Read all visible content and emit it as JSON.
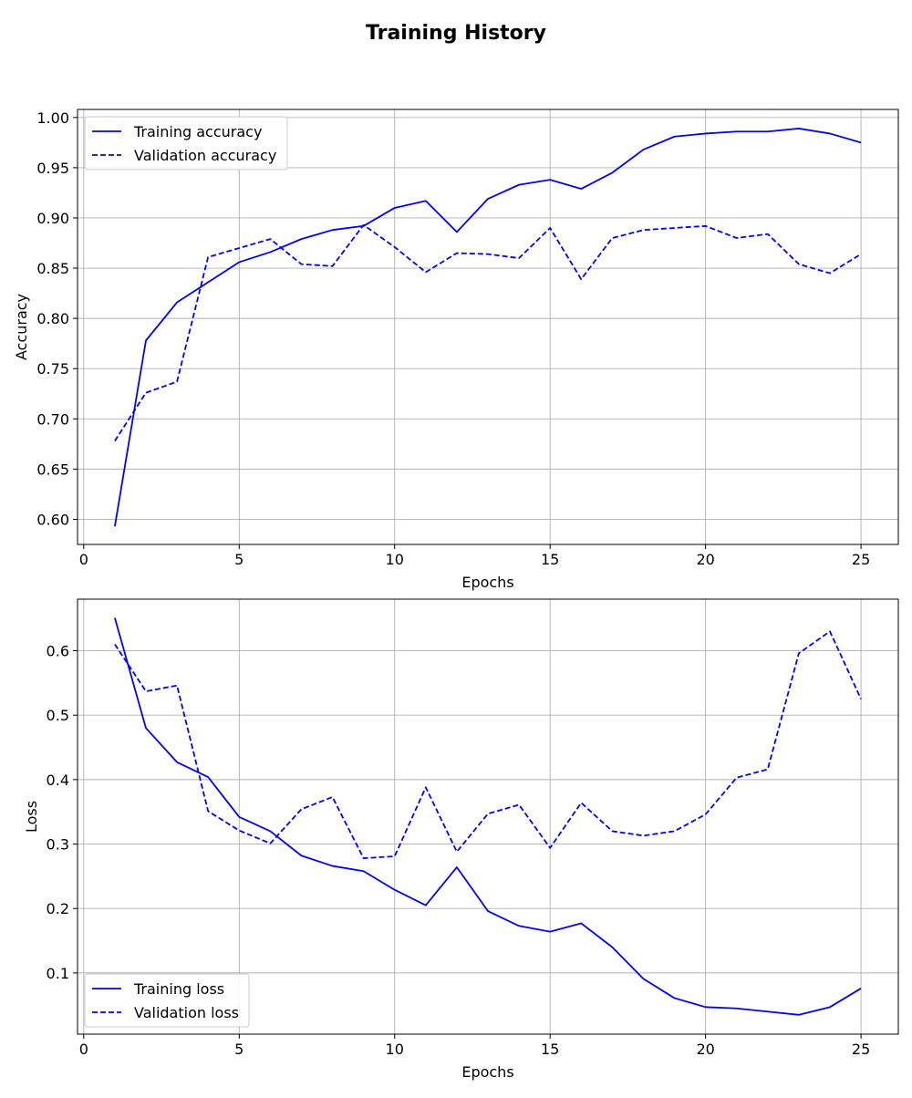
{
  "figure_title": "Training History",
  "colors": {
    "line": "#0000ff",
    "grid": "#b0b0b0",
    "axis": "#000000",
    "legend_border": "#cccccc"
  },
  "chart_data": [
    {
      "type": "line",
      "id": "accuracy",
      "xlabel": "Epochs",
      "ylabel": "Accuracy",
      "xlim": [
        -0.2,
        26.2
      ],
      "ylim": [
        0.575,
        1.008
      ],
      "xticks": [
        0,
        5,
        10,
        15,
        20,
        25
      ],
      "yticks": [
        0.6,
        0.65,
        0.7,
        0.75,
        0.8,
        0.85,
        0.9,
        0.95,
        1.0
      ],
      "ytick_decimals": 2,
      "grid": true,
      "legend_position": "top-left",
      "x": [
        1,
        2,
        3,
        4,
        5,
        6,
        7,
        8,
        9,
        10,
        11,
        12,
        13,
        14,
        15,
        16,
        17,
        18,
        19,
        20,
        21,
        22,
        23,
        24,
        25
      ],
      "series": [
        {
          "name": "Training accuracy",
          "style": "solid",
          "values": [
            0.593,
            0.778,
            0.816,
            0.836,
            0.856,
            0.866,
            0.879,
            0.888,
            0.892,
            0.91,
            0.917,
            0.886,
            0.919,
            0.933,
            0.938,
            0.929,
            0.945,
            0.968,
            0.981,
            0.984,
            0.986,
            0.986,
            0.989,
            0.984,
            0.975
          ]
        },
        {
          "name": "Validation accuracy",
          "style": "dashed",
          "values": [
            0.678,
            0.726,
            0.737,
            0.861,
            0.87,
            0.879,
            0.854,
            0.852,
            0.893,
            0.871,
            0.846,
            0.865,
            0.864,
            0.86,
            0.89,
            0.839,
            0.88,
            0.888,
            0.89,
            0.892,
            0.88,
            0.884,
            0.854,
            0.845,
            0.864
          ]
        }
      ]
    },
    {
      "type": "line",
      "id": "loss",
      "xlabel": "Epochs",
      "ylabel": "Loss",
      "xlim": [
        -0.2,
        26.2
      ],
      "ylim": [
        0.005,
        0.68
      ],
      "xticks": [
        0,
        5,
        10,
        15,
        20,
        25
      ],
      "yticks": [
        0.1,
        0.2,
        0.3,
        0.4,
        0.5,
        0.6
      ],
      "ytick_decimals": 1,
      "grid": true,
      "legend_position": "bottom-left",
      "x": [
        1,
        2,
        3,
        4,
        5,
        6,
        7,
        8,
        9,
        10,
        11,
        12,
        13,
        14,
        15,
        16,
        17,
        18,
        19,
        20,
        21,
        22,
        23,
        24,
        25
      ],
      "series": [
        {
          "name": "Training loss",
          "style": "solid",
          "values": [
            0.651,
            0.48,
            0.427,
            0.404,
            0.342,
            0.32,
            0.282,
            0.266,
            0.258,
            0.229,
            0.205,
            0.264,
            0.196,
            0.173,
            0.164,
            0.177,
            0.14,
            0.091,
            0.061,
            0.047,
            0.045,
            0.04,
            0.035,
            0.047,
            0.076
          ]
        },
        {
          "name": "Validation loss",
          "style": "dashed",
          "values": [
            0.61,
            0.537,
            0.546,
            0.351,
            0.321,
            0.301,
            0.354,
            0.373,
            0.278,
            0.281,
            0.388,
            0.288,
            0.347,
            0.361,
            0.294,
            0.364,
            0.32,
            0.313,
            0.32,
            0.346,
            0.403,
            0.416,
            0.596,
            0.63,
            0.525
          ]
        }
      ]
    }
  ]
}
